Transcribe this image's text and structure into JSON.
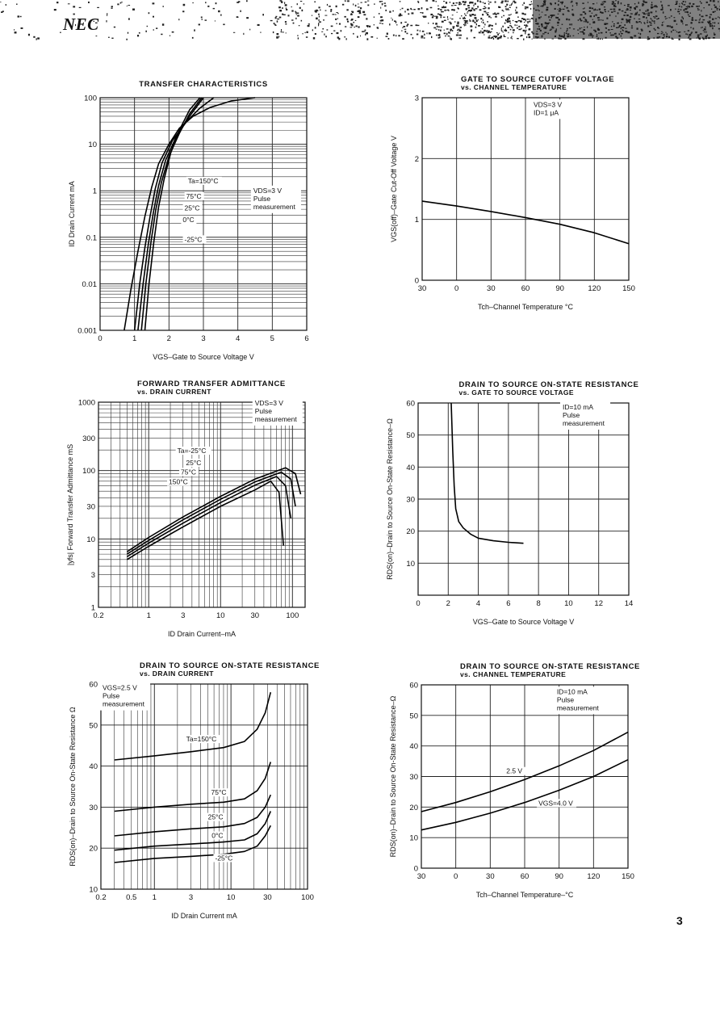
{
  "header": {
    "logo": "NEC"
  },
  "page_number": "3",
  "chart_data": [
    {
      "id": "transfer",
      "type": "line",
      "title": "TRANSFER CHARACTERISTICS",
      "subtitle": "",
      "xlabel": "VGS–Gate to Source Voltage  V",
      "ylabel": "ID  Drain Current  mA",
      "xscale": "linear",
      "yscale": "log",
      "xlim": [
        0,
        6
      ],
      "ylim": [
        0.001,
        100
      ],
      "xticks": [
        0,
        1,
        2,
        3,
        4,
        5,
        6
      ],
      "xtick_labels": [
        "0",
        "1",
        "2",
        "3",
        "4",
        "5",
        "6"
      ],
      "yticks": [
        0.001,
        0.01,
        0.1,
        1,
        10,
        100
      ],
      "ytick_labels": [
        "0.001",
        "0.01",
        "0.1",
        "1",
        "10",
        "100"
      ],
      "grid": true,
      "note_lines": [
        "VDS=3 V",
        "Pulse",
        "measurement"
      ],
      "note_x": 4.45,
      "note_y": 0.9,
      "series": [
        {
          "name": "Ta=150°C",
          "x": [
            0.7,
            0.9,
            1.1,
            1.3,
            1.5,
            1.7,
            2.0,
            2.3,
            2.7,
            3.2,
            3.8,
            4.5
          ],
          "y": [
            0.001,
            0.008,
            0.05,
            0.28,
            1.2,
            3.8,
            10,
            22,
            40,
            62,
            85,
            100
          ]
        },
        {
          "name": "75°C",
          "x": [
            1.0,
            1.15,
            1.3,
            1.45,
            1.6,
            1.8,
            2.1,
            2.5,
            2.9,
            3.3
          ],
          "y": [
            0.001,
            0.01,
            0.06,
            0.28,
            1.1,
            4,
            12,
            30,
            60,
            100
          ]
        },
        {
          "name": "25°C",
          "x": [
            1.1,
            1.25,
            1.4,
            1.55,
            1.7,
            1.9,
            2.2,
            2.6,
            3.0
          ],
          "y": [
            0.001,
            0.01,
            0.07,
            0.35,
            1.3,
            4.5,
            14,
            40,
            100
          ]
        },
        {
          "name": "0°C",
          "x": [
            1.2,
            1.33,
            1.48,
            1.62,
            1.78,
            2.0,
            2.3,
            2.6,
            2.95
          ],
          "y": [
            0.001,
            0.01,
            0.08,
            0.4,
            1.5,
            5.5,
            17,
            45,
            100
          ]
        },
        {
          "name": "-25°C",
          "x": [
            1.3,
            1.42,
            1.56,
            1.7,
            1.86,
            2.05,
            2.3,
            2.6,
            2.9
          ],
          "y": [
            0.001,
            0.01,
            0.08,
            0.45,
            1.8,
            6.5,
            20,
            55,
            100
          ]
        }
      ],
      "curve_labels": [
        {
          "text": "Ta=150°C",
          "x": 2.55,
          "y": 1.45
        },
        {
          "text": "75°C",
          "x": 2.5,
          "y": 0.68
        },
        {
          "text": "25°C",
          "x": 2.45,
          "y": 0.38
        },
        {
          "text": "0°C",
          "x": 2.4,
          "y": 0.21
        },
        {
          "text": "-25°C",
          "x": 2.45,
          "y": 0.08
        }
      ]
    },
    {
      "id": "cutoff",
      "type": "line",
      "title": "GATE TO SOURCE CUTOFF VOLTAGE",
      "subtitle": "vs. CHANNEL TEMPERATURE",
      "xlabel": "Tch–Channel Temperature  °C",
      "ylabel": "VGS(off)–Gate Cut-Off Voltage  V",
      "xscale": "linear",
      "yscale": "linear",
      "xlim": [
        -30,
        150
      ],
      "ylim": [
        0,
        3
      ],
      "xticks": [
        -30,
        0,
        30,
        60,
        90,
        120,
        150
      ],
      "xtick_labels": [
        "30",
        "0",
        "30",
        "60",
        "90",
        "120",
        "150"
      ],
      "yticks": [
        0,
        1,
        2,
        3
      ],
      "ytick_labels": [
        "0",
        "1",
        "2",
        "3"
      ],
      "grid": true,
      "note_lines": [
        "VDS=3 V",
        "ID=1 μA"
      ],
      "note_x": 67,
      "note_y": 2.85,
      "series": [
        {
          "name": "",
          "x": [
            -30,
            0,
            30,
            60,
            90,
            120,
            150
          ],
          "y": [
            1.3,
            1.22,
            1.13,
            1.03,
            0.92,
            0.78,
            0.6
          ]
        }
      ],
      "curve_labels": []
    },
    {
      "id": "admittance",
      "type": "line",
      "title": "FORWARD TRANSFER ADMITTANCE",
      "subtitle": "vs. DRAIN CURRENT",
      "xlabel": "ID  Drain Current–mA",
      "ylabel": "|yfs|  Forward Transfer Admittance  mS",
      "xscale": "log",
      "yscale": "log",
      "xlim": [
        0.2,
        150
      ],
      "ylim": [
        1,
        1000
      ],
      "xticks": [
        0.2,
        1,
        3,
        10,
        30,
        100
      ],
      "xtick_labels": [
        "0.2",
        "1",
        "3",
        "10",
        "30",
        "100"
      ],
      "yticks": [
        1,
        3,
        10,
        30,
        100,
        300,
        1000
      ],
      "ytick_labels": [
        "1",
        "3",
        "10",
        "30",
        "100",
        "300",
        "1000"
      ],
      "grid": true,
      "note_lines": [
        "VDS=3 V",
        "Pulse",
        "measurement"
      ],
      "note_x": 30,
      "note_y": 900,
      "series": [
        {
          "name": "Ta=-25°C",
          "x": [
            0.5,
            1,
            3,
            10,
            30,
            80,
            110,
            130
          ],
          "y": [
            6.5,
            10.5,
            21,
            42,
            75,
            110,
            90,
            45
          ]
        },
        {
          "name": "25°C",
          "x": [
            0.5,
            1,
            3,
            10,
            30,
            70,
            95,
            110
          ],
          "y": [
            6,
            9.5,
            19,
            38,
            68,
            95,
            75,
            30
          ]
        },
        {
          "name": "75°C",
          "x": [
            0.5,
            1,
            3,
            10,
            30,
            60,
            80,
            95
          ],
          "y": [
            5.5,
            8.7,
            17,
            34,
            61,
            82,
            60,
            20
          ]
        },
        {
          "name": "150°C",
          "x": [
            0.5,
            1,
            3,
            10,
            30,
            50,
            65,
            75
          ],
          "y": [
            5,
            7.8,
            15,
            30,
            52,
            70,
            48,
            8
          ]
        }
      ],
      "curve_labels": [
        {
          "text": "Ta=-25°C",
          "x": 2.5,
          "y": 180
        },
        {
          "text": "25°C",
          "x": 3.3,
          "y": 120
        },
        {
          "text": "75°C",
          "x": 2.8,
          "y": 88
        },
        {
          "text": "150°C",
          "x": 1.9,
          "y": 63
        }
      ]
    },
    {
      "id": "rds_vgs",
      "type": "line",
      "title": "DRAIN TO SOURCE ON-STATE RESISTANCE",
      "subtitle": "vs. GATE TO SOURCE VOLTAGE",
      "xlabel": "VGS–Gate to Source Voltage  V",
      "ylabel": "RDS(on)–Drain to Source On-State Resistance–Ω",
      "xscale": "linear",
      "yscale": "linear",
      "xlim": [
        0,
        14
      ],
      "ylim": [
        0,
        60
      ],
      "xticks": [
        0,
        2,
        4,
        6,
        8,
        10,
        12,
        14
      ],
      "xtick_labels": [
        "0",
        "2",
        "4",
        "6",
        "8",
        "10",
        "12",
        "14"
      ],
      "yticks": [
        0,
        10,
        20,
        30,
        40,
        50,
        60
      ],
      "ytick_labels": [
        "",
        "10",
        "20",
        "30",
        "40",
        "50",
        "60"
      ],
      "grid": true,
      "note_lines": [
        "ID=10 mA",
        "Pulse",
        "measurement"
      ],
      "note_x": 9.6,
      "note_y": 58,
      "series": [
        {
          "name": "",
          "x": [
            2.2,
            2.3,
            2.4,
            2.5,
            2.7,
            3.0,
            3.5,
            4.0,
            5.0,
            6.0,
            7.0
          ],
          "y": [
            60,
            45,
            34,
            27,
            23,
            21,
            19,
            17.8,
            17,
            16.5,
            16.2
          ]
        }
      ],
      "curve_labels": []
    },
    {
      "id": "rds_id",
      "type": "line",
      "title": "DRAIN TO SOURCE ON-STATE RESISTANCE",
      "subtitle": "vs. DRAIN CURRENT",
      "xlabel": "ID  Drain Current  mA",
      "ylabel": "RDS(on)–Drain to Source On-State Resistance  Ω",
      "xscale": "log",
      "yscale": "linear",
      "xlim": [
        0.2,
        100
      ],
      "ylim": [
        10,
        60
      ],
      "xticks": [
        0.2,
        0.5,
        1,
        3,
        10,
        30,
        100
      ],
      "xtick_labels": [
        "0.2",
        "0.5",
        "1",
        "3",
        "10",
        "30",
        "100"
      ],
      "yticks": [
        10,
        20,
        30,
        40,
        50,
        60
      ],
      "ytick_labels": [
        "10",
        "20",
        "30",
        "40",
        "50",
        "60"
      ],
      "grid": true,
      "note_lines": [
        "VGS=2.5 V",
        "Pulse",
        "measurement"
      ],
      "note_x": 0.21,
      "note_y": 58.5,
      "series": [
        {
          "name": "Ta=150°C",
          "x": [
            0.3,
            1,
            3,
            8,
            15,
            22,
            28,
            33
          ],
          "y": [
            41.5,
            42.5,
            43.5,
            44.5,
            46,
            49,
            53,
            58
          ]
        },
        {
          "name": "75°C",
          "x": [
            0.3,
            1,
            3,
            8,
            15,
            22,
            28,
            33
          ],
          "y": [
            29,
            30,
            30.7,
            31.2,
            32,
            34,
            37,
            41
          ]
        },
        {
          "name": "25°C",
          "x": [
            0.3,
            1,
            3,
            8,
            15,
            22,
            28,
            33
          ],
          "y": [
            23,
            24,
            24.7,
            25.2,
            26,
            27.5,
            30,
            33
          ]
        },
        {
          "name": "0°C",
          "x": [
            0.3,
            1,
            3,
            8,
            15,
            22,
            28,
            33
          ],
          "y": [
            19.5,
            20.5,
            21,
            21.5,
            22,
            23.5,
            26,
            29
          ]
        },
        {
          "name": "-25°C",
          "x": [
            0.3,
            1,
            3,
            8,
            15,
            22,
            28,
            33
          ],
          "y": [
            16.5,
            17.5,
            18,
            18.5,
            19.2,
            20.5,
            23,
            25.5
          ]
        }
      ],
      "curve_labels": [
        {
          "text": "Ta=150°C",
          "x": 2.6,
          "y": 46
        },
        {
          "text": "75°C",
          "x": 5.5,
          "y": 33
        },
        {
          "text": "25°C",
          "x": 5.0,
          "y": 27
        },
        {
          "text": "0°C",
          "x": 5.6,
          "y": 22.5
        },
        {
          "text": "-25°C",
          "x": 6.2,
          "y": 17
        }
      ]
    },
    {
      "id": "rds_temp",
      "type": "line",
      "title": "DRAIN TO SOURCE ON-STATE RESISTANCE",
      "subtitle": "vs. CHANNEL TEMPERATURE",
      "xlabel": "Tch–Channel Temperature–°C",
      "ylabel": "RDS(on)–Drain to Source On-State Resistance–Ω",
      "xscale": "linear",
      "yscale": "linear",
      "xlim": [
        -30,
        150
      ],
      "ylim": [
        0,
        60
      ],
      "xticks": [
        -30,
        0,
        30,
        60,
        90,
        120,
        150
      ],
      "xtick_labels": [
        "30",
        "0",
        "30",
        "60",
        "90",
        "120",
        "150"
      ],
      "yticks": [
        0,
        10,
        20,
        30,
        40,
        50,
        60
      ],
      "ytick_labels": [
        "0",
        "10",
        "20",
        "30",
        "40",
        "50",
        "60"
      ],
      "grid": true,
      "note_lines": [
        "ID=10 mA",
        "Pulse",
        "measurement"
      ],
      "note_x": 88,
      "note_y": 57,
      "series": [
        {
          "name": "2.5 V",
          "x": [
            -30,
            0,
            30,
            60,
            90,
            120,
            150
          ],
          "y": [
            18.5,
            21.5,
            25,
            29,
            33.5,
            38.5,
            44.5
          ]
        },
        {
          "name": "VGS=4.0 V",
          "x": [
            -30,
            0,
            30,
            60,
            90,
            120,
            150
          ],
          "y": [
            12.5,
            15,
            18,
            21.5,
            25.5,
            30,
            35.5
          ]
        }
      ],
      "curve_labels": [
        {
          "text": "2.5 V",
          "x": 44,
          "y": 31
        },
        {
          "text": "VGS=4.0 V",
          "x": 72,
          "y": 20.5
        }
      ]
    }
  ]
}
